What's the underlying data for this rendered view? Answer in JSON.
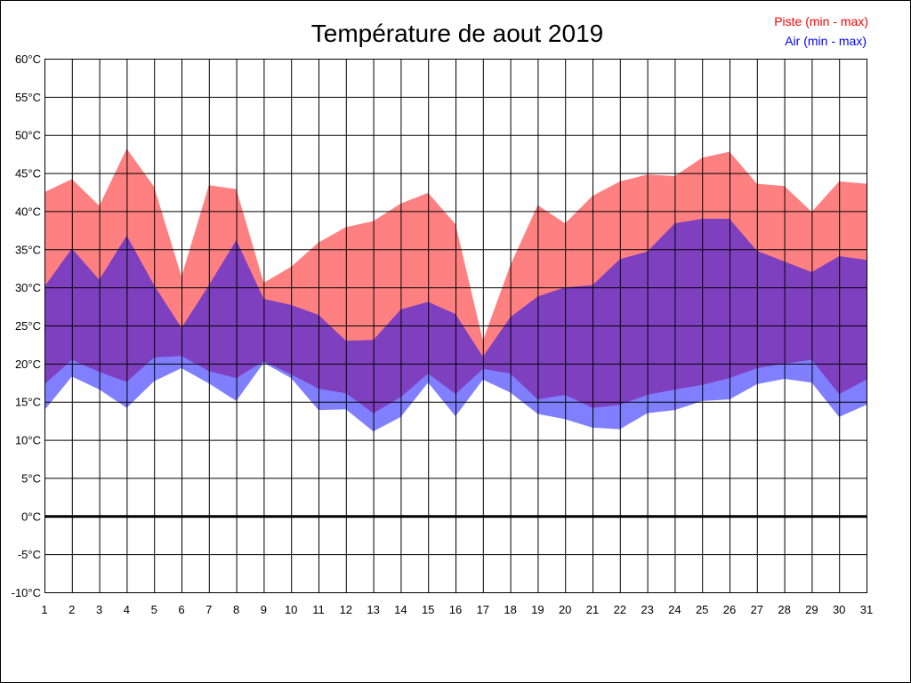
{
  "chart_data": {
    "type": "area",
    "title": "Température de aout 2019",
    "unit": "°C",
    "ylim": [
      -10,
      60
    ],
    "ystep": 5,
    "x": [
      1,
      2,
      3,
      4,
      5,
      6,
      7,
      8,
      9,
      10,
      11,
      12,
      13,
      14,
      15,
      16,
      17,
      18,
      19,
      20,
      21,
      22,
      23,
      24,
      25,
      26,
      27,
      28,
      29,
      30,
      31
    ],
    "grid": true,
    "legend_position": "top-right",
    "series": [
      {
        "name": "Piste (min - max)",
        "color": "#ff0000",
        "fill": "#ff8080",
        "min": [
          17.3,
          20.5,
          18.9,
          17.6,
          20.8,
          21.0,
          19.0,
          18.1,
          20.3,
          18.6,
          16.7,
          16.1,
          13.5,
          15.6,
          18.7,
          16.0,
          19.3,
          18.7,
          15.3,
          15.9,
          14.2,
          14.6,
          15.9,
          16.6,
          17.2,
          18.1,
          19.4,
          20.0,
          20.5,
          16.0,
          17.9
        ],
        "max": [
          42.5,
          44.2,
          40.7,
          48.2,
          43.2,
          31.4,
          43.4,
          42.9,
          30.6,
          32.7,
          35.9,
          37.9,
          38.7,
          41.0,
          42.4,
          38.3,
          23.0,
          32.9,
          40.8,
          38.4,
          42.0,
          43.9,
          44.8,
          44.6,
          47.0,
          47.8,
          43.6,
          43.3,
          39.9,
          43.9,
          43.6
        ]
      },
      {
        "name": "Air (min - max)",
        "color": "#0000ff",
        "fill": "#8080ff",
        "min": [
          13.9,
          18.3,
          16.6,
          14.2,
          17.7,
          19.4,
          17.4,
          15.1,
          20.1,
          18.1,
          13.9,
          14.0,
          11.1,
          13.0,
          17.5,
          13.1,
          17.9,
          16.2,
          13.4,
          12.7,
          11.6,
          11.4,
          13.5,
          13.9,
          15.1,
          15.3,
          17.3,
          18.0,
          17.5,
          13.0,
          14.6
        ],
        "max": [
          30.1,
          35.1,
          31.0,
          36.8,
          30.3,
          24.7,
          30.3,
          36.2,
          28.5,
          27.7,
          26.4,
          23.0,
          23.1,
          27.1,
          28.1,
          26.5,
          20.9,
          26.1,
          28.8,
          30.0,
          30.3,
          33.7,
          34.7,
          38.4,
          39.0,
          39.0,
          34.8,
          33.4,
          32.0,
          34.1,
          33.6
        ]
      }
    ]
  }
}
